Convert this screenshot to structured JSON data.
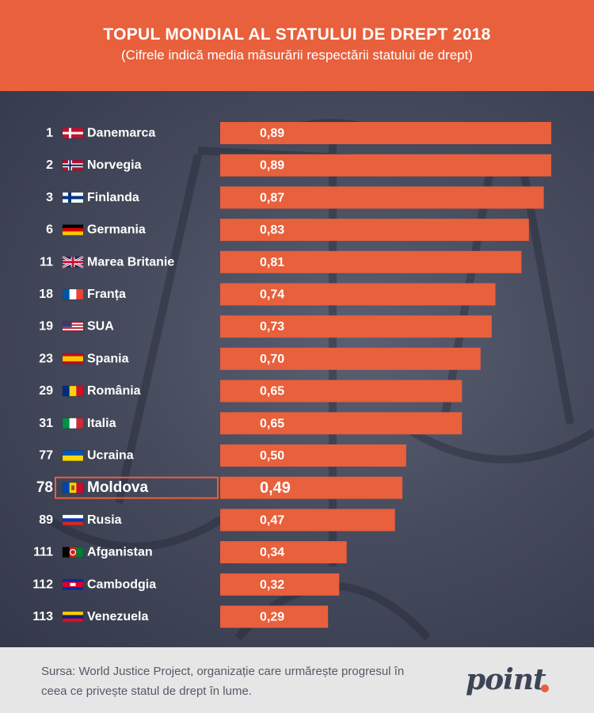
{
  "header": {
    "title": "TOPUL MONDIAL AL STATULUI DE DREPT 2018",
    "subtitle": "(Cifrele indică media măsurării respectării statului de drept)"
  },
  "colors": {
    "accent": "#e8603c",
    "background": "#3e4457",
    "text_light": "#ffffff",
    "footer_bg": "#e6e6e6"
  },
  "chart_data": {
    "type": "bar",
    "orientation": "horizontal",
    "title": "TOPUL MONDIAL AL STATULUI DE DREPT 2018",
    "subtitle": "(Cifrele indică media măsurării respectării statului de drept)",
    "highlight": "Moldova",
    "xlim": [
      0,
      0.89
    ],
    "grid": false,
    "rows": [
      {
        "rank": "1",
        "country": "Danemarca",
        "value": 0.89,
        "label": "0,89",
        "flag": "denmark"
      },
      {
        "rank": "2",
        "country": "Norvegia",
        "value": 0.89,
        "label": "0,89",
        "flag": "norway"
      },
      {
        "rank": "3",
        "country": "Finlanda",
        "value": 0.87,
        "label": "0,87",
        "flag": "finland"
      },
      {
        "rank": "6",
        "country": "Germania",
        "value": 0.83,
        "label": "0,83",
        "flag": "germany"
      },
      {
        "rank": "11",
        "country": "Marea Britanie",
        "value": 0.81,
        "label": "0,81",
        "flag": "uk"
      },
      {
        "rank": "18",
        "country": "Franța",
        "value": 0.74,
        "label": "0,74",
        "flag": "france"
      },
      {
        "rank": "19",
        "country": "SUA",
        "value": 0.73,
        "label": "0,73",
        "flag": "usa"
      },
      {
        "rank": "23",
        "country": "Spania",
        "value": 0.7,
        "label": "0,70",
        "flag": "spain"
      },
      {
        "rank": "29",
        "country": "România",
        "value": 0.65,
        "label": "0,65",
        "flag": "romania"
      },
      {
        "rank": "31",
        "country": "Italia",
        "value": 0.65,
        "label": "0,65",
        "flag": "italy"
      },
      {
        "rank": "77",
        "country": "Ucraina",
        "value": 0.5,
        "label": "0,50",
        "flag": "ukraine"
      },
      {
        "rank": "78",
        "country": "Moldova",
        "value": 0.49,
        "label": "0,49",
        "flag": "moldova"
      },
      {
        "rank": "89",
        "country": "Rusia",
        "value": 0.47,
        "label": "0,47",
        "flag": "russia"
      },
      {
        "rank": "111",
        "country": "Afganistan",
        "value": 0.34,
        "label": "0,34",
        "flag": "afghanistan"
      },
      {
        "rank": "112",
        "country": "Cambodgia",
        "value": 0.32,
        "label": "0,32",
        "flag": "cambodia"
      },
      {
        "rank": "113",
        "country": "Venezuela",
        "value": 0.29,
        "label": "0,29",
        "flag": "venezuela"
      }
    ]
  },
  "footer": {
    "source": "Sursa: World Justice Project, organizație care urmărește progresul în ceea ce privește statul de drept în lume.",
    "logo": "point"
  }
}
